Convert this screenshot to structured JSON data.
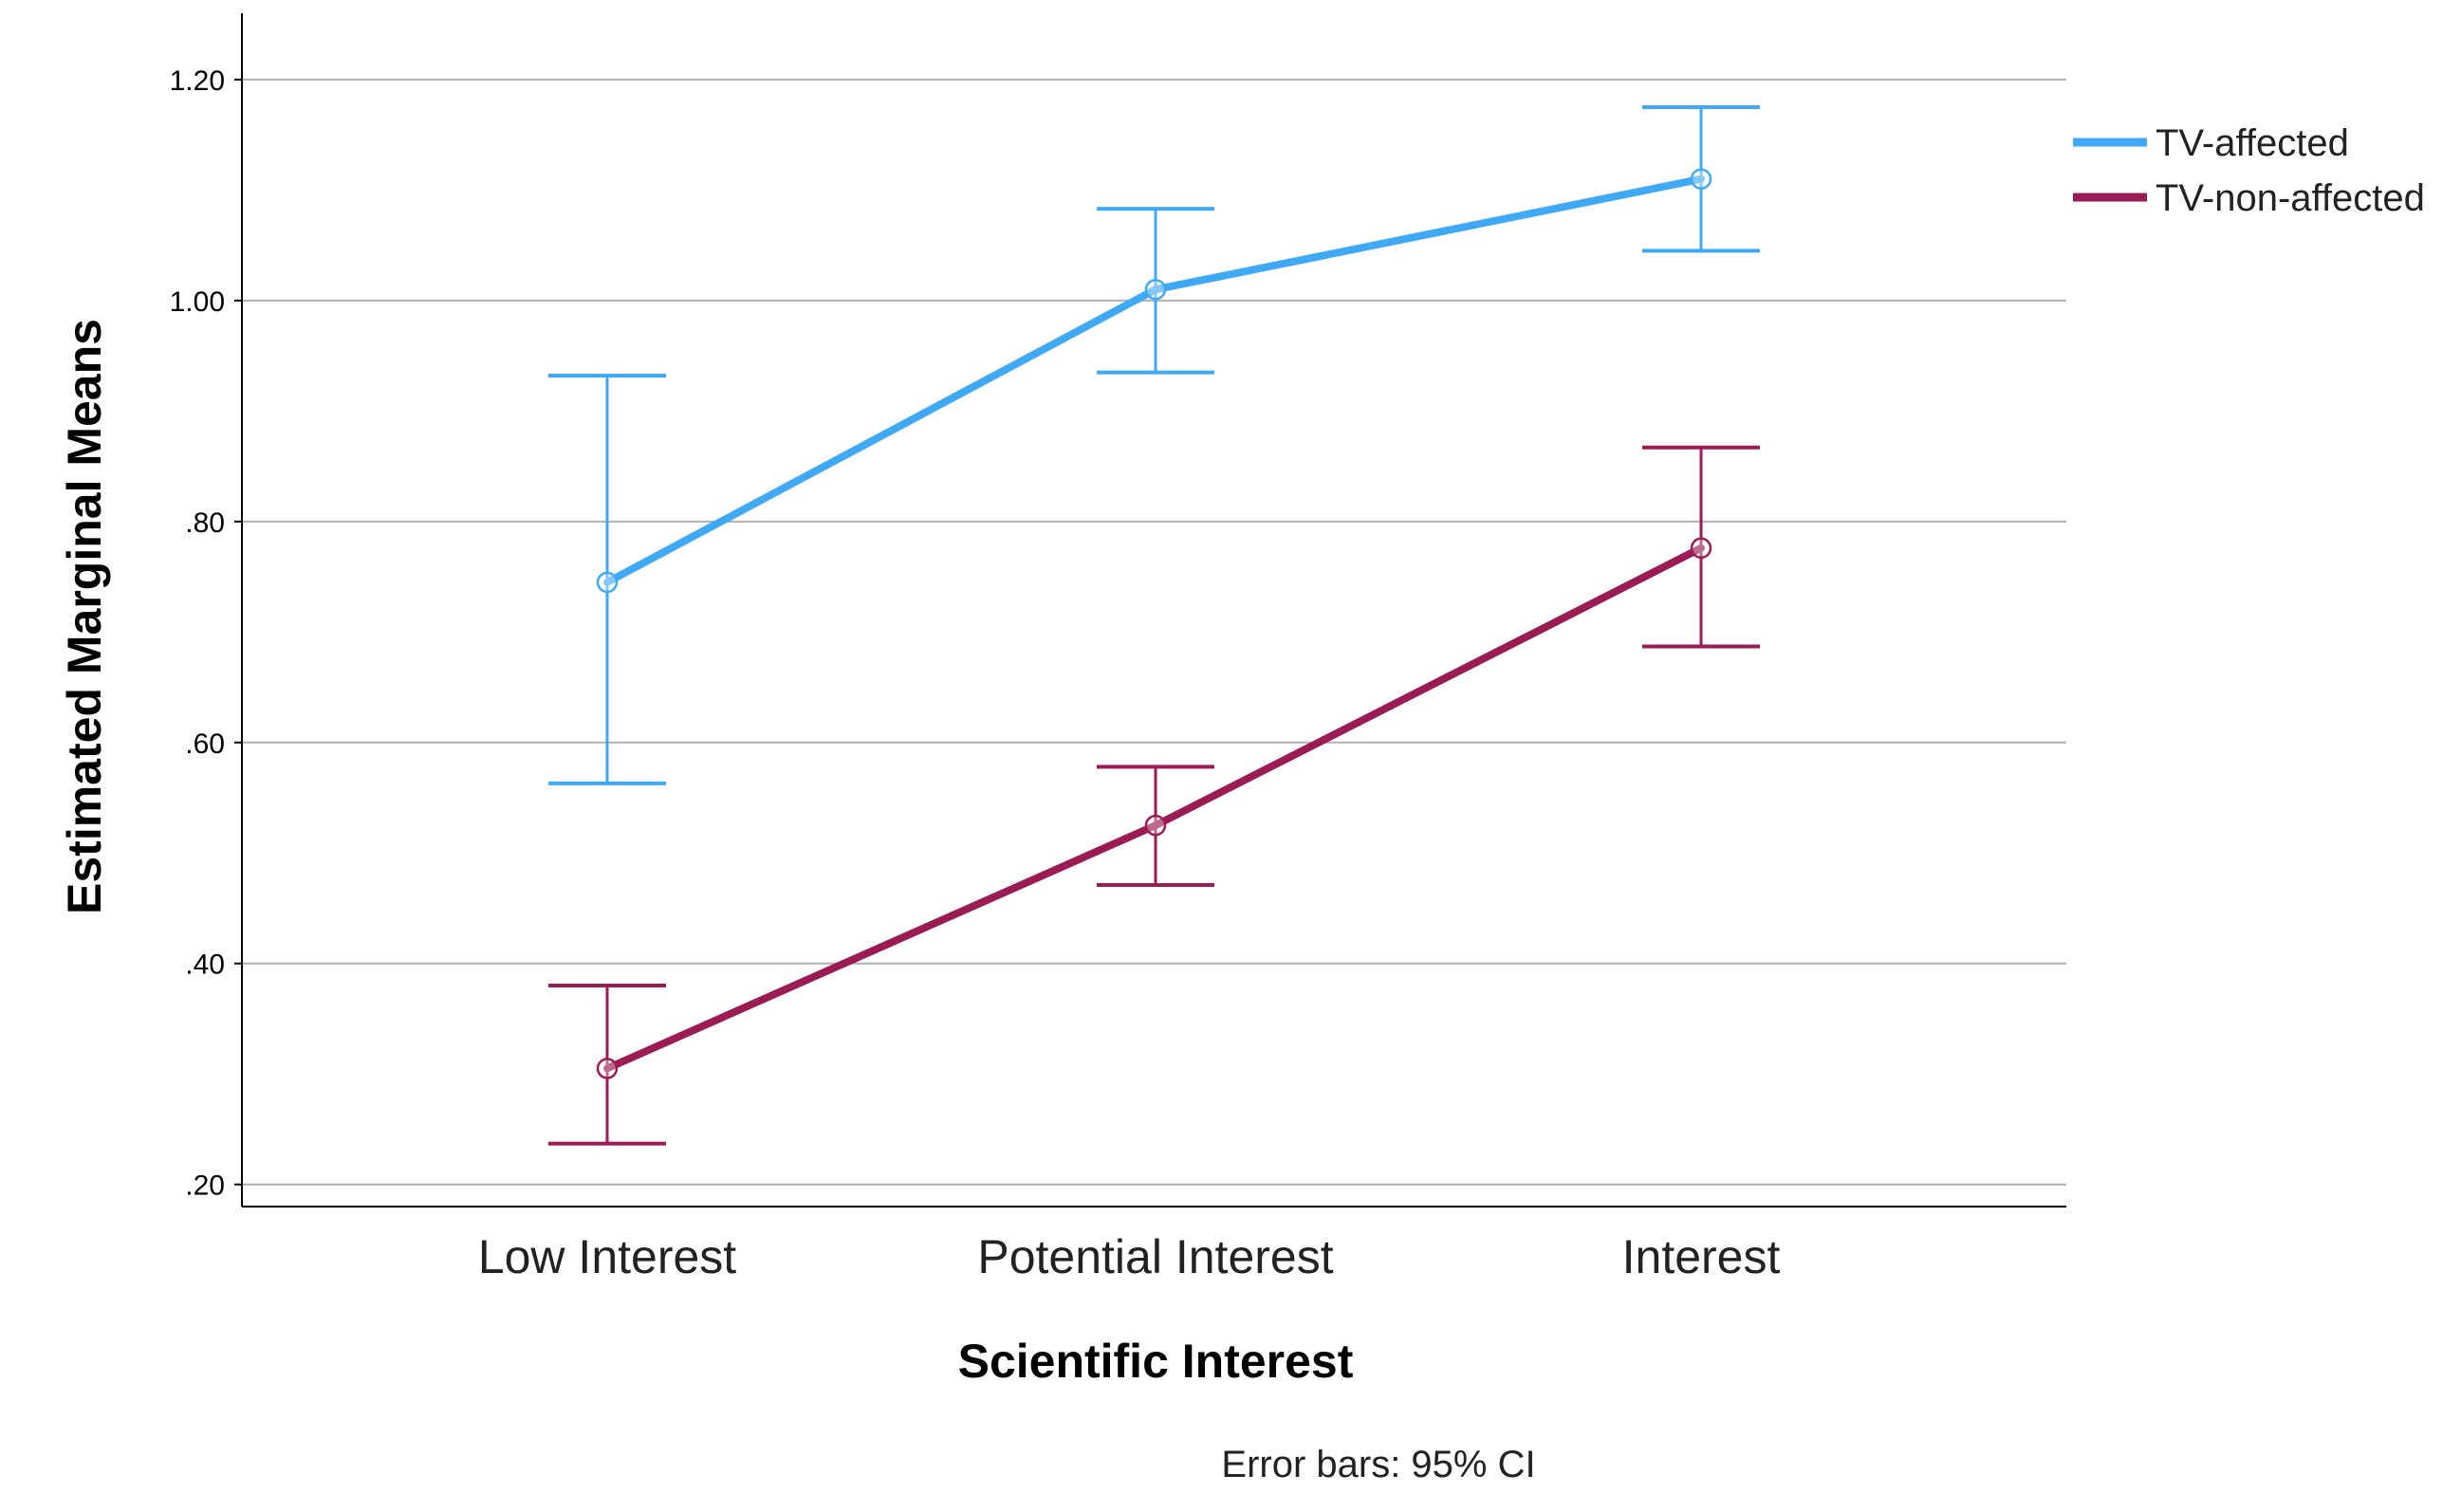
{
  "chart_data": {
    "type": "line",
    "title": "",
    "xlabel": "Scientific Interest",
    "ylabel": "Estimated Marginal Means",
    "categories": [
      "Low Interest",
      "Potential Interest",
      "Interest"
    ],
    "ylim": [
      0.18,
      1.26
    ],
    "yticks": [
      0.2,
      0.4,
      0.6,
      0.8,
      1.0,
      1.2
    ],
    "ytick_labels": [
      ".20",
      ".40",
      ".60",
      ".80",
      "1.00",
      "1.20"
    ],
    "grid": true,
    "legend_position": "top-right",
    "series": [
      {
        "name": "TV-affected",
        "color": "#3fa9f5",
        "values": [
          0.745,
          1.01,
          1.11
        ],
        "ci_low": [
          0.563,
          0.935,
          1.045
        ],
        "ci_high": [
          0.932,
          1.083,
          1.175
        ]
      },
      {
        "name": "TV-non-affected",
        "color": "#9b1b54",
        "values": [
          0.305,
          0.525,
          0.776
        ],
        "ci_low": [
          0.237,
          0.471,
          0.687
        ],
        "ci_high": [
          0.38,
          0.578,
          0.867
        ]
      }
    ],
    "annotation": "Error bars: 95% CI"
  }
}
